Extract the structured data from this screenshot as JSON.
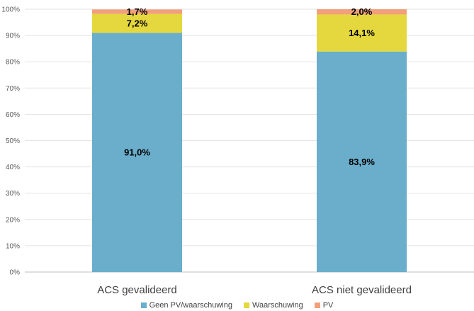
{
  "chart_data": {
    "type": "bar",
    "stacked": true,
    "categories": [
      "ACS gevalideerd",
      "ACS niet gevalideerd"
    ],
    "series": [
      {
        "name": "Geen PV/waarschuwing",
        "color": "#6aaecb",
        "values": [
          91.0,
          83.9
        ],
        "labels": [
          "91,0%",
          "83,9%"
        ]
      },
      {
        "name": "Waarschuwing",
        "color": "#e5d83e",
        "values": [
          7.2,
          14.1
        ],
        "labels": [
          "7,2%",
          "14,1%"
        ]
      },
      {
        "name": "PV",
        "color": "#f2a07b",
        "values": [
          1.7,
          2.0
        ],
        "labels": [
          "1,7%",
          "2,0%"
        ]
      }
    ],
    "ylim": [
      0,
      100
    ],
    "yticks": [
      "0%",
      "10%",
      "20%",
      "30%",
      "40%",
      "50%",
      "60%",
      "70%",
      "80%",
      "90%",
      "100%"
    ],
    "grid": true,
    "legend_position": "bottom"
  }
}
